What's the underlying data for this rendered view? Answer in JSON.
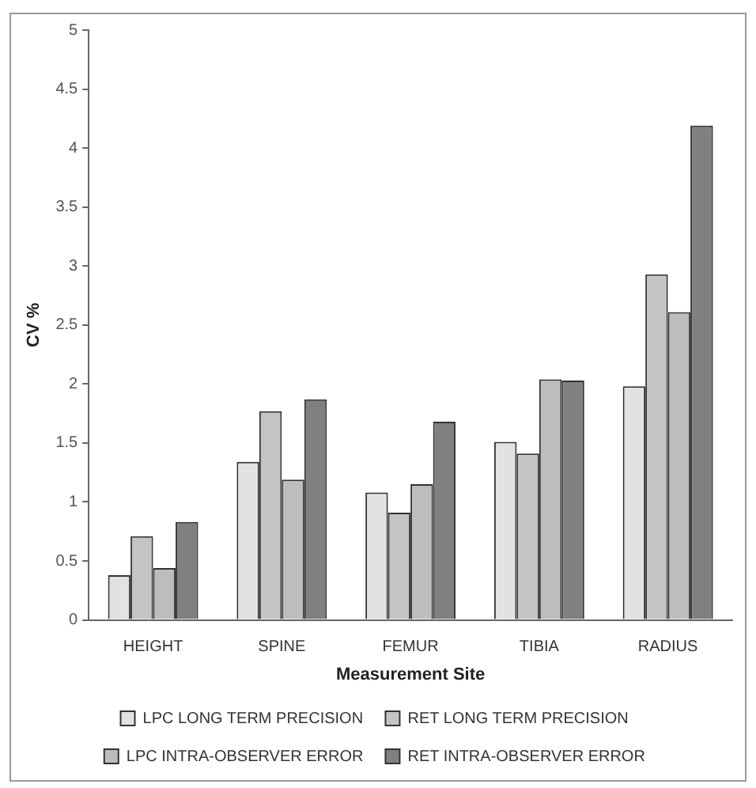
{
  "chart_data": {
    "type": "bar",
    "xlabel": "Measurement Site",
    "ylabel": "CV %",
    "categories": [
      "HEIGHT",
      "SPINE",
      "FEMUR",
      "TIBIA",
      "RADIUS"
    ],
    "series": [
      {
        "name": "LPC LONG TERM PRECISION",
        "color": "#e2e2e2",
        "values": [
          0.38,
          1.34,
          1.08,
          1.51,
          1.98
        ]
      },
      {
        "name": "RET LONG TERM PRECISION",
        "color": "#c4c4c4",
        "values": [
          0.71,
          1.77,
          0.91,
          1.41,
          2.93
        ]
      },
      {
        "name": "LPC INTRA-OBSERVER ERROR",
        "color": "#bdbdbd",
        "values": [
          0.44,
          1.19,
          1.15,
          2.04,
          2.61
        ]
      },
      {
        "name": "RET INTRA-OBSERVER ERROR",
        "color": "#808080",
        "values": [
          0.83,
          1.87,
          1.68,
          2.03,
          4.19
        ]
      }
    ],
    "ylim": [
      0,
      5
    ],
    "yticks": [
      0,
      0.5,
      1,
      1.5,
      2,
      2.5,
      3,
      3.5,
      4,
      4.5,
      5
    ],
    "grid": false,
    "legend": "bottom"
  }
}
